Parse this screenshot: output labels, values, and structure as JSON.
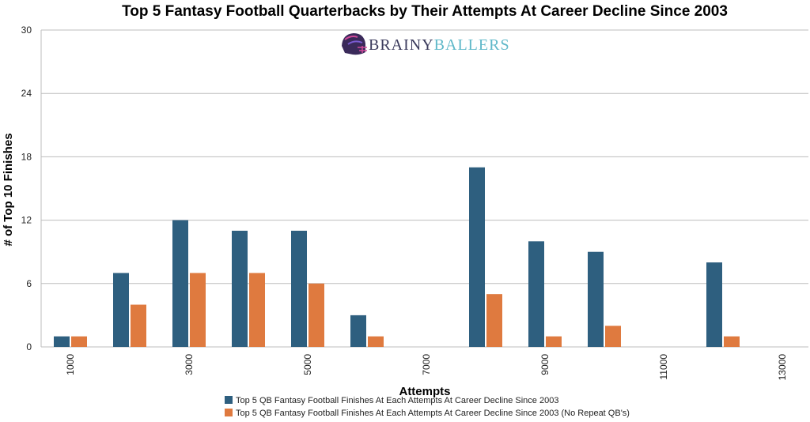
{
  "chart_data": {
    "type": "bar",
    "title": "Top 5 Fantasy Football Quarterbacks by Their Attempts At Career Decline Since 2003",
    "xlabel": "Attempts",
    "ylabel": "# of Top 10 Finishes",
    "ylim": [
      0,
      30
    ],
    "yticks": [
      "0",
      "6",
      "12",
      "18",
      "24",
      "30"
    ],
    "categories": [
      "1000",
      "2000",
      "3000",
      "4000",
      "5000",
      "6000",
      "7000",
      "8000",
      "9000",
      "10000",
      "11000",
      "12000",
      "13000"
    ],
    "xtick_labels": [
      "1000",
      "",
      "3000",
      "",
      "5000",
      "",
      "7000",
      "",
      "9000",
      "",
      "11000",
      "",
      "13000"
    ],
    "series": [
      {
        "name": "Top 5 QB Fantasy Football Finishes At Each Attempts At Career Decline Since 2003",
        "color": "#2e5f7f",
        "values": [
          1,
          7,
          12,
          11,
          11,
          3,
          0,
          17,
          10,
          9,
          0,
          8,
          0
        ]
      },
      {
        "name": "Top 5 QB Fantasy Football Finishes At Each Attempts At Career Decline Since 2003 (No Repeat QB's)",
        "color": "#df7a3f",
        "values": [
          1,
          4,
          7,
          7,
          6,
          1,
          0,
          5,
          1,
          2,
          0,
          1,
          0
        ]
      }
    ],
    "grid": true,
    "legend_position": "bottom"
  },
  "logo": {
    "word1": "BRAINY",
    "word2": "BALLERS",
    "icon": "football-helmet-icon"
  }
}
